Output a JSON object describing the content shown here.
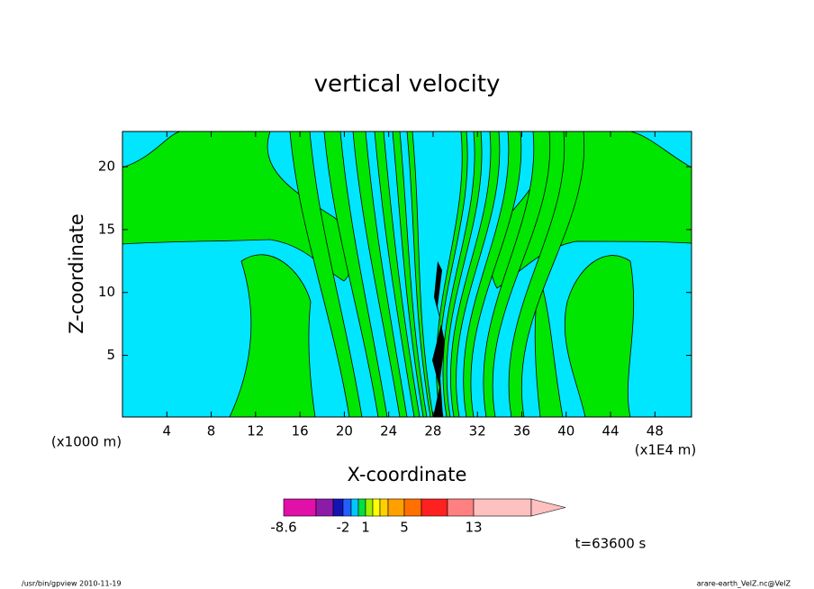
{
  "chart_data": {
    "type": "contour",
    "title": "vertical velocity",
    "x_label": "X-coordinate",
    "y_label": "Z-coordinate",
    "x_unit": "(x1E4 m)",
    "y_unit": "(x1000 m)",
    "xlim": [
      0,
      51.3
    ],
    "xticks": [
      4,
      8,
      12,
      16,
      20,
      24,
      28,
      32,
      36,
      40,
      44,
      48
    ],
    "ylim": [
      0.1,
      22.8
    ],
    "yticks": [
      5,
      10,
      15,
      20
    ],
    "colorbar": {
      "colors": [
        "#e010a8",
        "#8c1ca8",
        "#1414b4",
        "#2060ff",
        "#00c8ff",
        "#00e040",
        "#a0f000",
        "#ffff00",
        "#ffd000",
        "#ffa000",
        "#ff7000",
        "#ff2020",
        "#ff8080",
        "#ffc0c0"
      ],
      "extend_color": "#ffc0c0",
      "levels": [
        -8.6,
        null,
        null,
        -2,
        null,
        null,
        1,
        null,
        null,
        null,
        5,
        null,
        null,
        13,
        null
      ]
    },
    "time_label": "t=63600 s",
    "footer_left": "/usr/bin/gpview   2010-11-19",
    "footer_right": "arare-earth_VelZ.nc@VelZ"
  }
}
